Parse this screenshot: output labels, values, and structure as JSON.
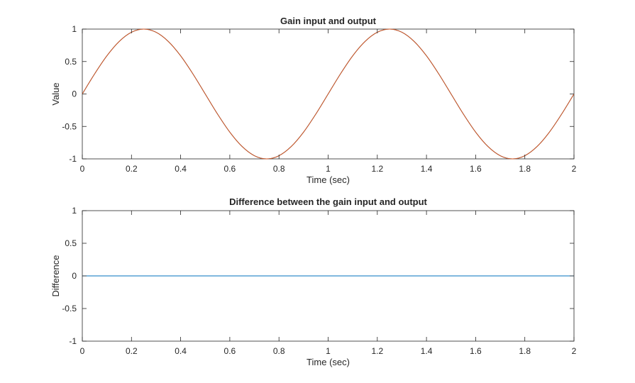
{
  "chart_data": [
    {
      "type": "line",
      "title": "Gain input and output",
      "xlabel": "Time (sec)",
      "ylabel": "Value",
      "xlim": [
        0,
        2
      ],
      "ylim": [
        -1,
        1
      ],
      "xticks": [
        0,
        0.2,
        0.4,
        0.6,
        0.8,
        1,
        1.2,
        1.4,
        1.6,
        1.8,
        2
      ],
      "xtick_labels": [
        "0",
        "0.2",
        "0.4",
        "0.6",
        "0.8",
        "1",
        "1.2",
        "1.4",
        "1.6",
        "1.8",
        "2"
      ],
      "yticks": [
        -1,
        -0.5,
        0,
        0.5,
        1
      ],
      "ytick_labels": [
        "-1",
        "-0.5",
        "0",
        "0.5",
        "1"
      ],
      "grid": false,
      "series": [
        {
          "color": "#0072bd",
          "x": [
            0,
            0.05,
            0.1,
            0.15,
            0.2,
            0.25,
            0.3,
            0.35,
            0.4,
            0.45,
            0.5,
            0.55,
            0.6,
            0.65,
            0.7,
            0.75,
            0.8,
            0.85,
            0.9,
            0.95,
            1,
            1.05,
            1.1,
            1.15,
            1.2,
            1.25,
            1.3,
            1.35,
            1.4,
            1.45,
            1.5,
            1.55,
            1.6,
            1.65,
            1.7,
            1.75,
            1.8,
            1.85,
            1.9,
            1.95,
            2
          ],
          "y": [
            0,
            0.309,
            0.588,
            0.809,
            0.951,
            1,
            0.951,
            0.809,
            0.588,
            0.309,
            0,
            -0.309,
            -0.588,
            -0.809,
            -0.951,
            -1,
            -0.951,
            -0.809,
            -0.588,
            -0.309,
            0,
            0.309,
            0.588,
            0.809,
            0.951,
            1,
            0.951,
            0.809,
            0.588,
            0.309,
            0,
            -0.309,
            -0.588,
            -0.809,
            -0.951,
            -1,
            -0.951,
            -0.809,
            -0.588,
            -0.309,
            0
          ]
        },
        {
          "color": "#d95319",
          "x": [
            0,
            0.05,
            0.1,
            0.15,
            0.2,
            0.25,
            0.3,
            0.35,
            0.4,
            0.45,
            0.5,
            0.55,
            0.6,
            0.65,
            0.7,
            0.75,
            0.8,
            0.85,
            0.9,
            0.95,
            1,
            1.05,
            1.1,
            1.15,
            1.2,
            1.25,
            1.3,
            1.35,
            1.4,
            1.45,
            1.5,
            1.55,
            1.6,
            1.65,
            1.7,
            1.75,
            1.8,
            1.85,
            1.9,
            1.95,
            2
          ],
          "y": [
            0,
            0.309,
            0.588,
            0.809,
            0.951,
            1,
            0.951,
            0.809,
            0.588,
            0.309,
            0,
            -0.309,
            -0.588,
            -0.809,
            -0.951,
            -1,
            -0.951,
            -0.809,
            -0.588,
            -0.309,
            0,
            0.309,
            0.588,
            0.809,
            0.951,
            1,
            0.951,
            0.809,
            0.588,
            0.309,
            0,
            -0.309,
            -0.588,
            -0.809,
            -0.951,
            -1,
            -0.951,
            -0.809,
            -0.588,
            -0.309,
            0
          ]
        }
      ]
    },
    {
      "type": "line",
      "title": "Difference between the gain input and output",
      "xlabel": "Time (sec)",
      "ylabel": "Difference",
      "xlim": [
        0,
        2
      ],
      "ylim": [
        -1,
        1
      ],
      "xticks": [
        0,
        0.2,
        0.4,
        0.6,
        0.8,
        1,
        1.2,
        1.4,
        1.6,
        1.8,
        2
      ],
      "xtick_labels": [
        "0",
        "0.2",
        "0.4",
        "0.6",
        "0.8",
        "1",
        "1.2",
        "1.4",
        "1.6",
        "1.8",
        "2"
      ],
      "yticks": [
        -1,
        -0.5,
        0,
        0.5,
        1
      ],
      "ytick_labels": [
        "-1",
        "-0.5",
        "0",
        "0.5",
        "1"
      ],
      "grid": false,
      "series": [
        {
          "color": "#0072bd",
          "x": [
            0,
            2
          ],
          "y": [
            0,
            0
          ]
        }
      ]
    }
  ]
}
